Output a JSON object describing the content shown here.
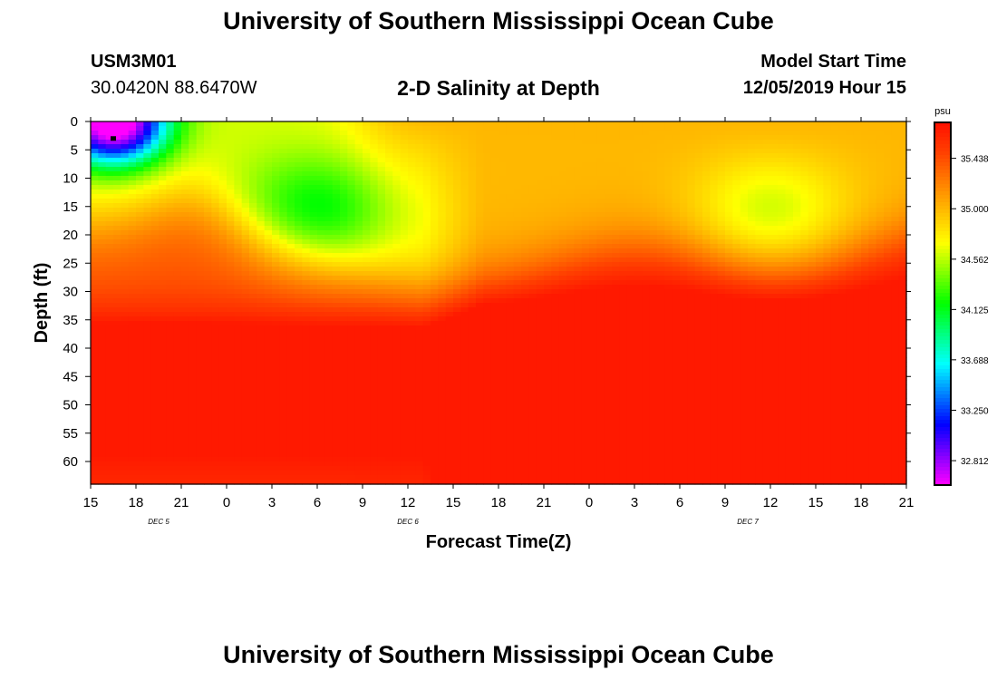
{
  "header": {
    "title_top": "University of Southern Mississippi Ocean Cube",
    "title_bottom": "University of Southern Mississippi Ocean Cube",
    "station_id": "USM3M01",
    "coordinates": "30.0420N 88.6470W",
    "plot_title": "2-D Salinity at Depth",
    "start_label": "Model Start Time",
    "start_value": "12/05/2019 Hour 15"
  },
  "chart_data": {
    "type": "heatmap",
    "title": "2-D Salinity at Depth",
    "xlabel": "Forecast Time(Z)",
    "ylabel": "Depth (ft)",
    "x_range_hours": [
      0,
      54
    ],
    "x_tick_labels": [
      "15",
      "18",
      "21",
      "0",
      "3",
      "6",
      "9",
      "12",
      "15",
      "18",
      "21",
      "0",
      "3",
      "6",
      "9",
      "12",
      "15",
      "18",
      "21"
    ],
    "date_labels": [
      {
        "label": "DEC 5",
        "hour": 4.5
      },
      {
        "label": "DEC 6",
        "hour": 21
      },
      {
        "label": "DEC 7",
        "hour": 43.5
      }
    ],
    "y_range_ft": [
      0,
      64
    ],
    "y_tick_values": [
      0,
      5,
      10,
      15,
      20,
      25,
      30,
      35,
      40,
      45,
      50,
      55,
      60
    ],
    "colorbar": {
      "unit": "psu",
      "min": 32.6,
      "max": 35.75,
      "tick_values": [
        32.812,
        33.25,
        33.688,
        34.125,
        34.562,
        35.0,
        35.438
      ],
      "tick_labels": [
        "32.812",
        "33.250",
        "33.688",
        "34.125",
        "34.562",
        "35.000",
        "35.438"
      ],
      "colors": [
        "#ff00ff",
        "#8000ff",
        "#0000ff",
        "#0080ff",
        "#00ffff",
        "#00ff80",
        "#00ff00",
        "#80ff00",
        "#ffff00",
        "#ffc000",
        "#ff8000",
        "#ff4000",
        "#ff1000"
      ]
    },
    "marker": {
      "hour": 1.5,
      "depth_ft": 3
    },
    "field_summary": {
      "min_psu": 32.65,
      "min_location": "surface, hour 1.5",
      "max_psu": 35.7,
      "max_location": "depth 45-64 ft"
    }
  }
}
